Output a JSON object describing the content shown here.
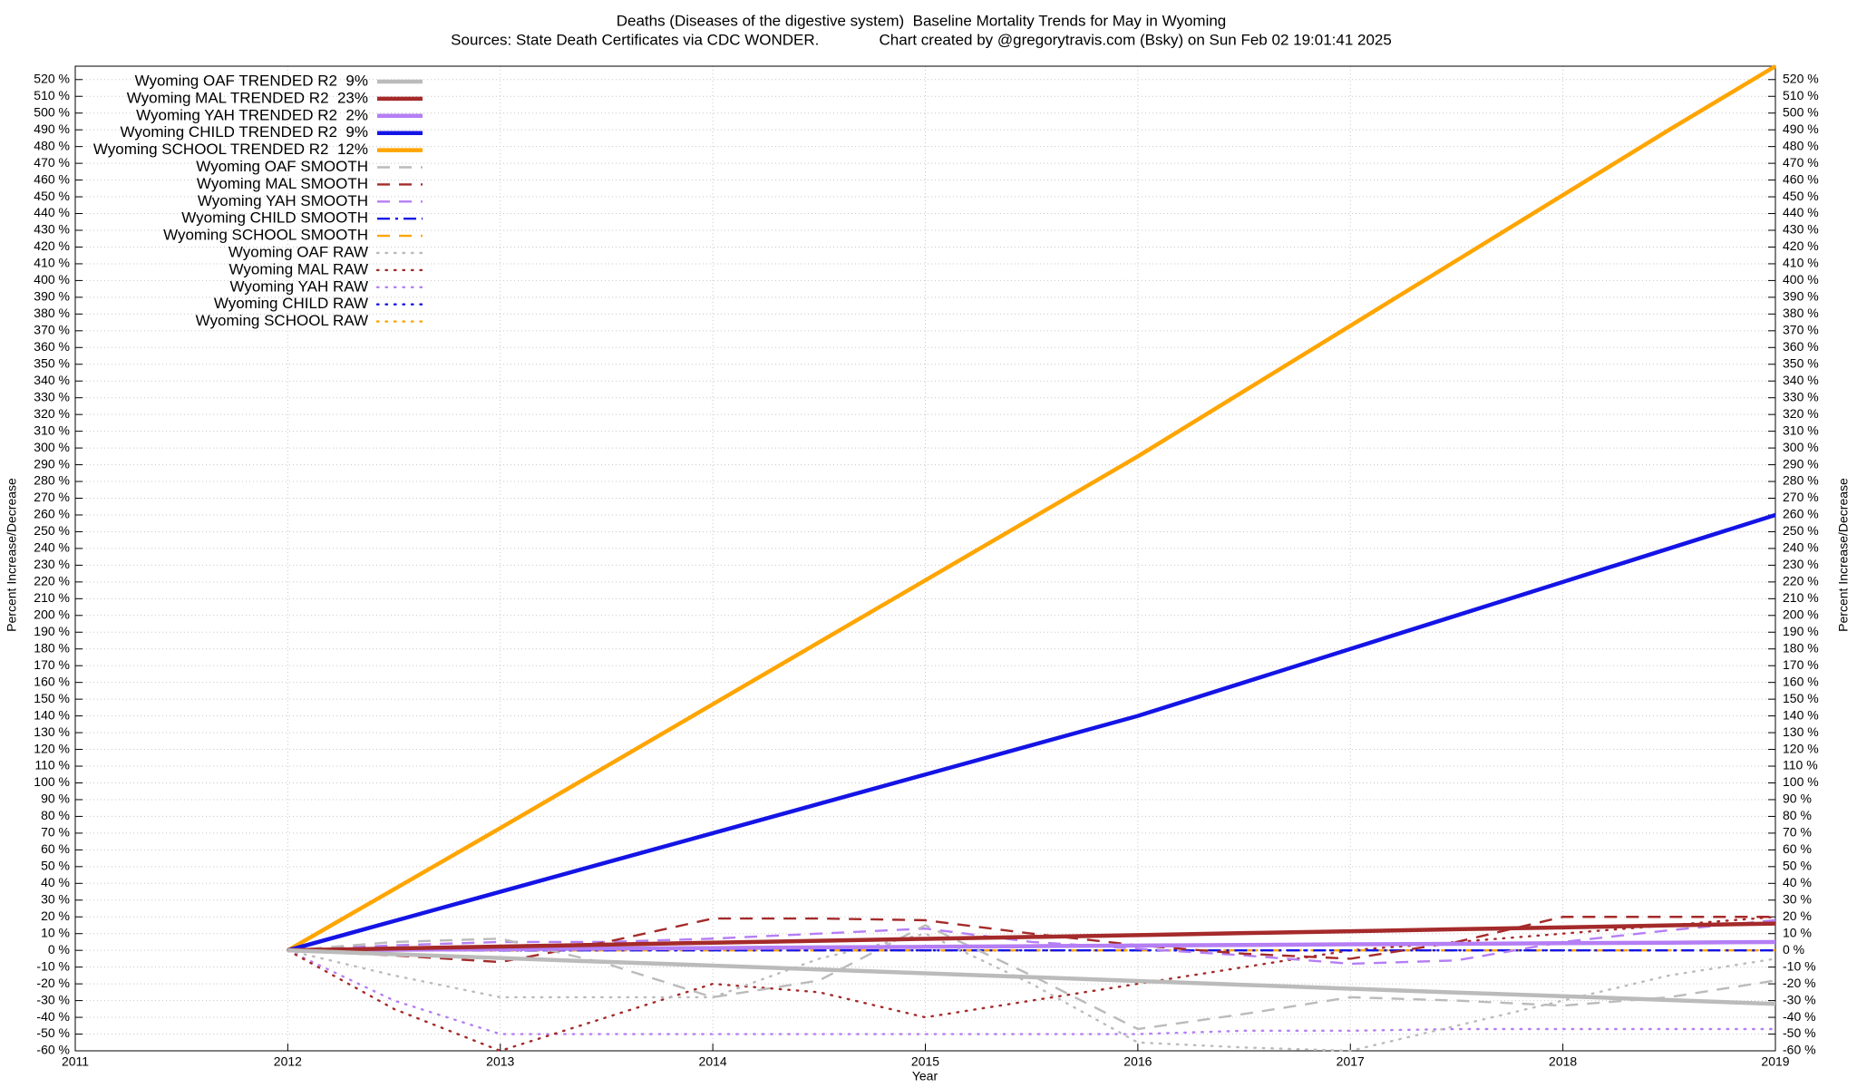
{
  "chart_data": {
    "type": "line",
    "title": "Deaths (Diseases of the digestive system)  Baseline Mortality Trends for May in Wyoming",
    "subtitle": "Sources: State Death Certificates via CDC WONDER.              Chart created by @gregorytravis.com (Bsky) on Sun Feb 02 19:01:41 2025",
    "xlabel": "Year",
    "ylabel": "Percent Increase/Decrease",
    "grid": true,
    "legend": "upper left",
    "xlim": [
      2011,
      2019
    ],
    "xticks": [
      2011,
      2012,
      2013,
      2014,
      2015,
      2016,
      2017,
      2018,
      2019
    ],
    "ylim": [
      -60,
      528
    ],
    "yticks": [
      {
        "value": -60,
        "label": "-60 %"
      },
      {
        "value": -50,
        "label": "-50 %"
      },
      {
        "value": -40,
        "label": "-40 %"
      },
      {
        "value": -30,
        "label": "-30 %"
      },
      {
        "value": -20,
        "label": "-20 %"
      },
      {
        "value": -10,
        "label": "-10 %"
      },
      {
        "value": 0,
        "label": "0 %"
      },
      {
        "value": 10,
        "label": "10 %"
      },
      {
        "value": 20,
        "label": "20 %"
      },
      {
        "value": 30,
        "label": "30 %"
      },
      {
        "value": 40,
        "label": "40 %"
      },
      {
        "value": 50,
        "label": "50 %"
      },
      {
        "value": 60,
        "label": "60 %"
      },
      {
        "value": 70,
        "label": "70 %"
      },
      {
        "value": 80,
        "label": "80 %"
      },
      {
        "value": 90,
        "label": "90 %"
      },
      {
        "value": 100,
        "label": "100 %"
      },
      {
        "value": 110,
        "label": "110 %"
      },
      {
        "value": 120,
        "label": "120 %"
      },
      {
        "value": 130,
        "label": "130 %"
      },
      {
        "value": 140,
        "label": "140 %"
      },
      {
        "value": 150,
        "label": "150 %"
      },
      {
        "value": 160,
        "label": "160 %"
      },
      {
        "value": 170,
        "label": "170 %"
      },
      {
        "value": 180,
        "label": "180 %"
      },
      {
        "value": 190,
        "label": "190 %"
      },
      {
        "value": 200,
        "label": "200 %"
      },
      {
        "value": 210,
        "label": "210 %"
      },
      {
        "value": 220,
        "label": "220 %"
      },
      {
        "value": 230,
        "label": "230 %"
      },
      {
        "value": 240,
        "label": "240 %"
      },
      {
        "value": 250,
        "label": "250 %"
      },
      {
        "value": 260,
        "label": "260 %"
      },
      {
        "value": 270,
        "label": "270 %"
      },
      {
        "value": 280,
        "label": "280 %"
      },
      {
        "value": 290,
        "label": "290 %"
      },
      {
        "value": 300,
        "label": "300 %"
      },
      {
        "value": 310,
        "label": "310 %"
      },
      {
        "value": 320,
        "label": "320 %"
      },
      {
        "value": 330,
        "label": "330 %"
      },
      {
        "value": 340,
        "label": "340 %"
      },
      {
        "value": 350,
        "label": "350 %"
      },
      {
        "value": 360,
        "label": "360 %"
      },
      {
        "value": 370,
        "label": "370 %"
      },
      {
        "value": 380,
        "label": "380 %"
      },
      {
        "value": 390,
        "label": "390 %"
      },
      {
        "value": 400,
        "label": "400 %"
      },
      {
        "value": 410,
        "label": "410 %"
      },
      {
        "value": 420,
        "label": "420 %"
      },
      {
        "value": 430,
        "label": "430 %"
      },
      {
        "value": 440,
        "label": "440 %"
      },
      {
        "value": 450,
        "label": "450 %"
      },
      {
        "value": 460,
        "label": "460 %"
      },
      {
        "value": 470,
        "label": "470 %"
      },
      {
        "value": 480,
        "label": "480 %"
      },
      {
        "value": 490,
        "label": "490 %"
      },
      {
        "value": 500,
        "label": "500 %"
      },
      {
        "value": 510,
        "label": "510 %"
      },
      {
        "value": 520,
        "label": "520 %"
      }
    ],
    "x": [
      2012,
      2012.5,
      2013,
      2013.5,
      2014,
      2014.5,
      2015,
      2015.5,
      2016,
      2016.5,
      2017,
      2017.5,
      2018,
      2018.5,
      2019
    ],
    "series": [
      {
        "name": "Wyoming OAF TRENDED R2  9%",
        "color": "#bbbbbb",
        "style": "solid",
        "values": [
          0,
          -2.3,
          -4.6,
          -6.9,
          -9.1,
          -11.4,
          -13.7,
          -16,
          -18.3,
          -20.6,
          -22.9,
          -25.2,
          -27.4,
          -29.7,
          -32
        ]
      },
      {
        "name": "Wyoming MAL TRENDED R2  23%",
        "color": "#a52a2a",
        "style": "solid",
        "values": [
          0,
          1.1,
          2.3,
          3.4,
          4.6,
          5.7,
          6.9,
          8,
          9.1,
          10.3,
          11.4,
          12.6,
          13.7,
          14.9,
          16
        ]
      },
      {
        "name": "Wyoming YAH TRENDED R2  2%",
        "color": "#b57ef5",
        "style": "solid",
        "values": [
          0,
          0.4,
          0.7,
          1.1,
          1.4,
          1.8,
          2.1,
          2.5,
          2.9,
          3.2,
          3.6,
          3.9,
          4.3,
          4.6,
          5
        ]
      },
      {
        "name": "Wyoming CHILD TRENDED R2  9%",
        "color": "#1414e6",
        "style": "solid",
        "values": [
          0,
          17.5,
          35,
          52.5,
          70,
          87.5,
          105,
          122.5,
          140,
          160,
          180,
          200,
          220,
          240,
          260
        ]
      },
      {
        "name": "Wyoming SCHOOL TRENDED R2  12%",
        "color": "#ffa500",
        "style": "solid",
        "values": [
          0,
          36.5,
          73,
          110,
          147,
          184,
          221,
          258,
          295,
          334,
          373,
          412,
          451,
          490,
          528
        ]
      },
      {
        "name": "Wyoming OAF SMOOTH",
        "color": "#bbbbbb",
        "style": "dashed",
        "values": [
          0,
          5,
          7,
          -8,
          -28,
          -18,
          15,
          -15,
          -47,
          -38,
          -28,
          -30,
          -33,
          -28,
          -18
        ]
      },
      {
        "name": "Wyoming MAL SMOOTH",
        "color": "#a52a2a",
        "style": "dashed",
        "values": [
          0,
          -3,
          -7,
          5,
          19,
          19,
          18,
          10,
          3,
          -2,
          -5,
          5,
          20,
          20,
          20
        ]
      },
      {
        "name": "Wyoming YAH SMOOTH",
        "color": "#b57ef5",
        "style": "dashed",
        "values": [
          0,
          3,
          5,
          5,
          7,
          10,
          13,
          5,
          1,
          -3,
          -8,
          -6,
          5,
          12,
          18
        ]
      },
      {
        "name": "Wyoming CHILD SMOOTH",
        "color": "#1414e6",
        "style": "dashdot",
        "values": [
          0,
          0,
          0,
          0,
          0,
          0,
          0,
          0,
          0,
          0,
          0,
          0,
          0,
          0,
          0
        ]
      },
      {
        "name": "Wyoming SCHOOL SMOOTH",
        "color": "#ffa500",
        "style": "dashed",
        "values": [
          0,
          0,
          0,
          0,
          0,
          0,
          0,
          0,
          0,
          0,
          0,
          0,
          0,
          0,
          0
        ]
      },
      {
        "name": "Wyoming OAF RAW",
        "color": "#bbbbbb",
        "style": "dotted",
        "values": [
          0,
          -15,
          -28,
          -28,
          -28,
          -5,
          10,
          -20,
          -55,
          -58,
          -60,
          -45,
          -30,
          -15,
          -5
        ]
      },
      {
        "name": "Wyoming MAL RAW",
        "color": "#a52a2a",
        "style": "dotted",
        "values": [
          0,
          -35,
          -60,
          -40,
          -20,
          -25,
          -40,
          -30,
          -20,
          -10,
          0,
          5,
          10,
          15,
          20
        ]
      },
      {
        "name": "Wyoming YAH RAW",
        "color": "#b57ef5",
        "style": "dotted",
        "values": [
          0,
          -30,
          -50,
          -50,
          -50,
          -50,
          -50,
          -50,
          -50,
          -48,
          -48,
          -47,
          -47,
          -47,
          -47
        ]
      },
      {
        "name": "Wyoming CHILD RAW",
        "color": "#1414e6",
        "style": "dotted",
        "values": [
          0,
          0,
          0,
          0,
          0,
          0,
          0,
          0,
          0,
          0,
          0,
          0,
          0,
          0,
          0
        ]
      },
      {
        "name": "Wyoming SCHOOL RAW",
        "color": "#ffa500",
        "style": "dotted",
        "values": [
          0,
          0,
          0,
          0,
          0,
          0,
          0,
          0,
          0,
          0,
          0,
          0,
          0,
          0,
          0
        ]
      }
    ]
  }
}
